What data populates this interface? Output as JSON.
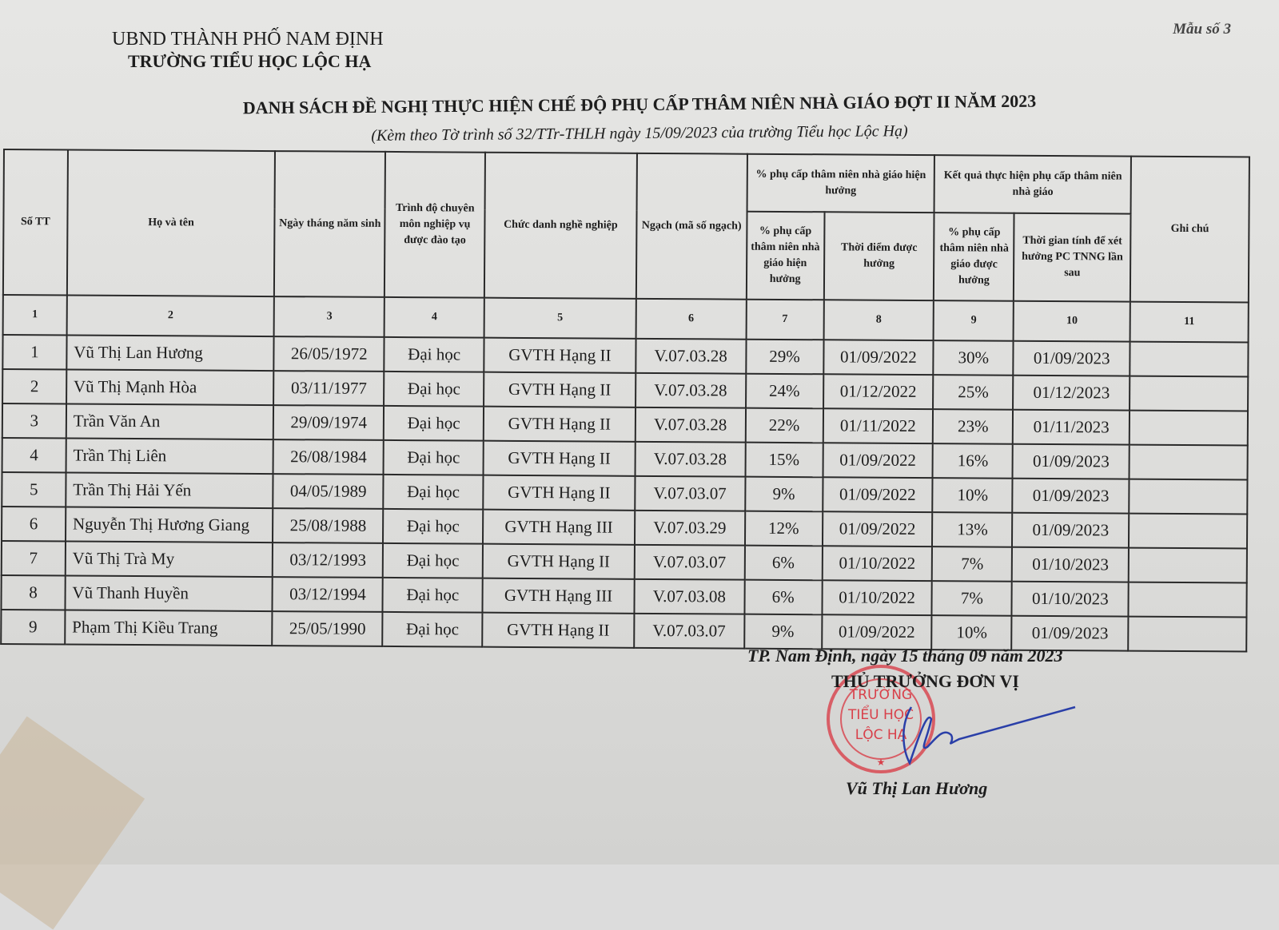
{
  "header": {
    "org_line1": "UBND THÀNH PHỐ NAM ĐỊNH",
    "org_line2": "TRƯỜNG TIỂU HỌC LỘC HẠ",
    "form_no": "Mẫu số 3",
    "title": "DANH SÁCH ĐỀ NGHỊ THỰC HIỆN CHẾ ĐỘ PHỤ CẤP THÂM NIÊN NHÀ GIÁO ĐỢT II NĂM 2023",
    "subtitle": "(Kèm theo Tờ trình số 32/TTr-THLH  ngày 15/09/2023 của trường Tiểu học Lộc Hạ)"
  },
  "table": {
    "headers": {
      "stt": "Số TT",
      "name": "Họ và tên",
      "dob": "Ngày tháng năm sinh",
      "degree": "Trình độ chuyên môn nghiệp vụ được đào tạo",
      "title": "Chức danh nghề nghiệp",
      "rank": "Ngạch (mã số ngạch)",
      "group_current": "% phụ cấp thâm niên nhà giáo hiện hưởng",
      "current_pct": "% phụ cấp thâm niên nhà giáo hiện hưởng",
      "current_date": "Thời điểm được hưởng",
      "group_result": "Kết quả thực hiện phụ cấp thâm niên nhà giáo",
      "new_pct": "% phụ cấp thâm niên nhà giáo được hưởng",
      "next_date": "Thời gian tính để xét hưởng PC TNNG lần sau",
      "note": "Ghi chú"
    },
    "index_row": [
      "1",
      "2",
      "3",
      "4",
      "5",
      "6",
      "7",
      "8",
      "9",
      "10",
      "11"
    ],
    "rows": [
      [
        "1",
        "Vũ Thị Lan Hương",
        "26/05/1972",
        "Đại học",
        "GVTH Hạng II",
        "V.07.03.28",
        "29%",
        "01/09/2022",
        "30%",
        "01/09/2023",
        ""
      ],
      [
        "2",
        "Vũ Thị Mạnh Hòa",
        "03/11/1977",
        "Đại học",
        "GVTH Hạng II",
        "V.07.03.28",
        "24%",
        "01/12/2022",
        "25%",
        "01/12/2023",
        ""
      ],
      [
        "3",
        "Trần Văn An",
        "29/09/1974",
        "Đại học",
        "GVTH Hạng II",
        "V.07.03.28",
        "22%",
        "01/11/2022",
        "23%",
        "01/11/2023",
        ""
      ],
      [
        "4",
        "Trần Thị Liên",
        "26/08/1984",
        "Đại học",
        "GVTH Hạng II",
        "V.07.03.28",
        "15%",
        "01/09/2022",
        "16%",
        "01/09/2023",
        ""
      ],
      [
        "5",
        "Trần Thị Hải Yến",
        "04/05/1989",
        "Đại học",
        "GVTH Hạng II",
        "V.07.03.07",
        "9%",
        "01/09/2022",
        "10%",
        "01/09/2023",
        ""
      ],
      [
        "6",
        "Nguyễn Thị Hương Giang",
        "25/08/1988",
        "Đại học",
        "GVTH Hạng III",
        "V.07.03.29",
        "12%",
        "01/09/2022",
        "13%",
        "01/09/2023",
        ""
      ],
      [
        "7",
        "Vũ Thị Trà My",
        "03/12/1993",
        "Đại học",
        "GVTH Hạng II",
        "V.07.03.07",
        "6%",
        "01/10/2022",
        "7%",
        "01/10/2023",
        ""
      ],
      [
        "8",
        "Vũ Thanh Huyền",
        "03/12/1994",
        "Đại học",
        "GVTH Hạng III",
        "V.07.03.08",
        "6%",
        "01/10/2022",
        "7%",
        "01/10/2023",
        ""
      ],
      [
        "9",
        "Phạm Thị Kiều Trang",
        "25/05/1990",
        "Đại học",
        "GVTH Hạng II",
        "V.07.03.07",
        "9%",
        "01/09/2022",
        "10%",
        "01/09/2023",
        ""
      ]
    ]
  },
  "footer": {
    "place_date": "TP. Nam Định, ngày 15  tháng 09  năm 2023",
    "position": "THỦ TRƯỞNG ĐƠN VỊ",
    "signer": "Vũ Thị Lan Hương",
    "stamp_text": [
      "TRƯỜNG",
      "TIỂU HỌC",
      "LỘC HẠ"
    ],
    "stamp_color": "#d8404a",
    "signature_color": "#2a3fa8"
  }
}
